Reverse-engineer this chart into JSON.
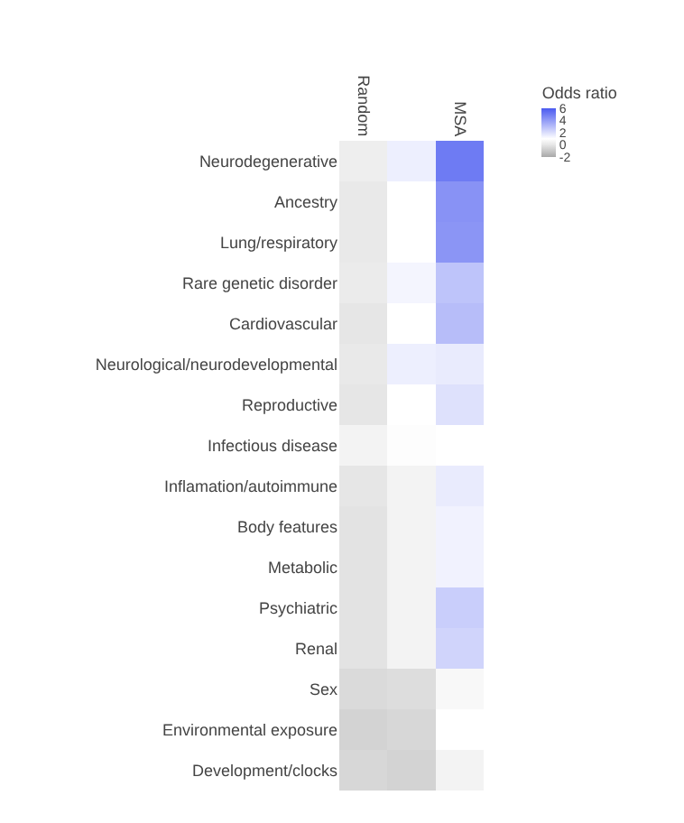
{
  "chart_data": {
    "type": "heatmap",
    "legend_title": "Odds ratio",
    "categories": [
      "Random",
      null,
      "MSA"
    ],
    "y_categories": [
      "Neurodegenerative",
      "Ancestry",
      "Lung/respiratory",
      "Rare genetic disorder",
      "Cardiovascular",
      "Neurological/neurodevelopmental",
      "Reproductive",
      "Infectious disease",
      "Inflamation/autoimmune",
      "Body features",
      "Metabolic",
      "Psychiatric",
      "Renal",
      "Sex",
      "Environmental exposure",
      "Development/clocks"
    ],
    "cells": [
      [
        0.3,
        1.5,
        5
      ],
      [
        0.1,
        1,
        4.3
      ],
      [
        0.1,
        1,
        4.2
      ],
      [
        0.2,
        1.3,
        2.8
      ],
      [
        0,
        1,
        3
      ],
      [
        0.1,
        1.5,
        1.6
      ],
      [
        0,
        1,
        1.9
      ],
      [
        0.5,
        0.9,
        1
      ],
      [
        0,
        0.5,
        1.6
      ],
      [
        -0.1,
        0.5,
        1.4
      ],
      [
        -0.1,
        0.5,
        1.4
      ],
      [
        -0.1,
        0.5,
        2.5
      ],
      [
        -0.1,
        0.5,
        2.3
      ],
      [
        -0.4,
        -0.3,
        0.7
      ],
      [
        -0.6,
        -0.5,
        1
      ],
      [
        -0.5,
        -0.6,
        0.5
      ]
    ],
    "clim": [
      -2,
      6
    ],
    "cticks": [
      -2,
      0,
      2,
      4,
      6
    ]
  }
}
